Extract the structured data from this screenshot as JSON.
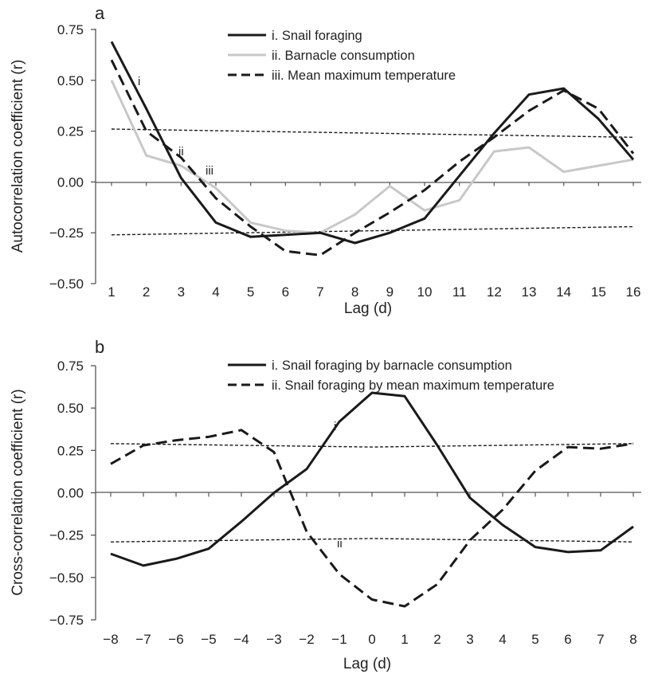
{
  "chart_data": [
    {
      "type": "line",
      "panel_label": "a",
      "xlabel": "Lag (d)",
      "ylabel": "Autocorrelation coefficient (r)",
      "ylim": [
        -0.5,
        0.75
      ],
      "yticks": [
        -0.5,
        -0.25,
        0,
        0.25,
        0.5,
        0.75
      ],
      "ytick_labels": [
        "−0.50",
        "−0.25",
        "0.00",
        "0.25",
        "0.50",
        "0.75"
      ],
      "x": [
        1,
        2,
        3,
        4,
        5,
        6,
        7,
        8,
        9,
        10,
        11,
        12,
        13,
        14,
        15,
        16
      ],
      "xtick_labels": [
        "1",
        "2",
        "3",
        "4",
        "5",
        "6",
        "7",
        "8",
        "9",
        "10",
        "11",
        "12",
        "13",
        "14",
        "15",
        "16"
      ],
      "legend_position": "top-center",
      "grid": false,
      "series": [
        {
          "name": "i. Snail foraging",
          "label": "i",
          "style": "solid",
          "color": "#1a1a1a",
          "values": [
            0.69,
            0.36,
            0.02,
            -0.2,
            -0.27,
            -0.26,
            -0.25,
            -0.3,
            -0.25,
            -0.18,
            0.03,
            0.24,
            0.43,
            0.46,
            0.31,
            0.11
          ]
        },
        {
          "name": "ii. Barnacle consumption",
          "label": "ii",
          "style": "solid",
          "color": "#c8c8c8",
          "values": [
            0.5,
            0.13,
            0.08,
            -0.03,
            -0.2,
            -0.24,
            -0.25,
            -0.16,
            -0.02,
            -0.14,
            -0.09,
            0.15,
            0.17,
            0.05,
            0.08,
            0.11
          ]
        },
        {
          "name": "iii. Mean maximum temperature",
          "label": "iii",
          "style": "dashed",
          "color": "#1a1a1a",
          "values": [
            0.6,
            0.25,
            0.12,
            -0.08,
            -0.22,
            -0.34,
            -0.36,
            -0.25,
            -0.15,
            -0.04,
            0.1,
            0.22,
            0.35,
            0.45,
            0.36,
            0.14
          ]
        }
      ],
      "confidence_bounds": {
        "upper": [
          0.26,
          0.22
        ],
        "lower": [
          -0.26,
          -0.22
        ]
      }
    },
    {
      "type": "line",
      "panel_label": "b",
      "xlabel": "Lag (d)",
      "ylabel": "Cross-correlation coefficient (r)",
      "ylim": [
        -0.75,
        0.75
      ],
      "yticks": [
        -0.75,
        -0.5,
        -0.25,
        0,
        0.25,
        0.5,
        0.75
      ],
      "ytick_labels": [
        "−0.75",
        "−0.50",
        "−0.25",
        "0.00",
        "0.25",
        "0.50",
        "0.75"
      ],
      "x": [
        -8,
        -7,
        -6,
        -5,
        -4,
        -3,
        -2,
        -1,
        0,
        1,
        2,
        3,
        4,
        5,
        6,
        7,
        8
      ],
      "xtick_labels": [
        "−8",
        "−7",
        "−6",
        "−5",
        "−4",
        "−3",
        "−2",
        "−1",
        "0",
        "1",
        "2",
        "3",
        "4",
        "5",
        "6",
        "7",
        "8"
      ],
      "legend_position": "top-right",
      "grid": false,
      "series": [
        {
          "name": "i. Snail foraging by barnacle consumption",
          "label": "i",
          "style": "solid",
          "color": "#1a1a1a",
          "values": [
            -0.36,
            -0.43,
            -0.39,
            -0.33,
            -0.17,
            0,
            0.14,
            0.42,
            0.59,
            0.57,
            0.28,
            -0.03,
            -0.19,
            -0.32,
            -0.35,
            -0.34,
            -0.2
          ]
        },
        {
          "name": "ii. Snail foraging by mean maximum temperature",
          "label": "ii",
          "style": "dashed",
          "color": "#1a1a1a",
          "values": [
            0.17,
            0.28,
            0.31,
            0.33,
            0.37,
            0.24,
            -0.23,
            -0.48,
            -0.63,
            -0.67,
            -0.54,
            -0.28,
            -0.1,
            0.13,
            0.27,
            0.26,
            0.29
          ]
        }
      ],
      "confidence_bounds": {
        "upper": [
          0.29,
          0.27,
          0.29
        ],
        "lower": [
          -0.29,
          -0.27,
          -0.29
        ]
      }
    }
  ]
}
